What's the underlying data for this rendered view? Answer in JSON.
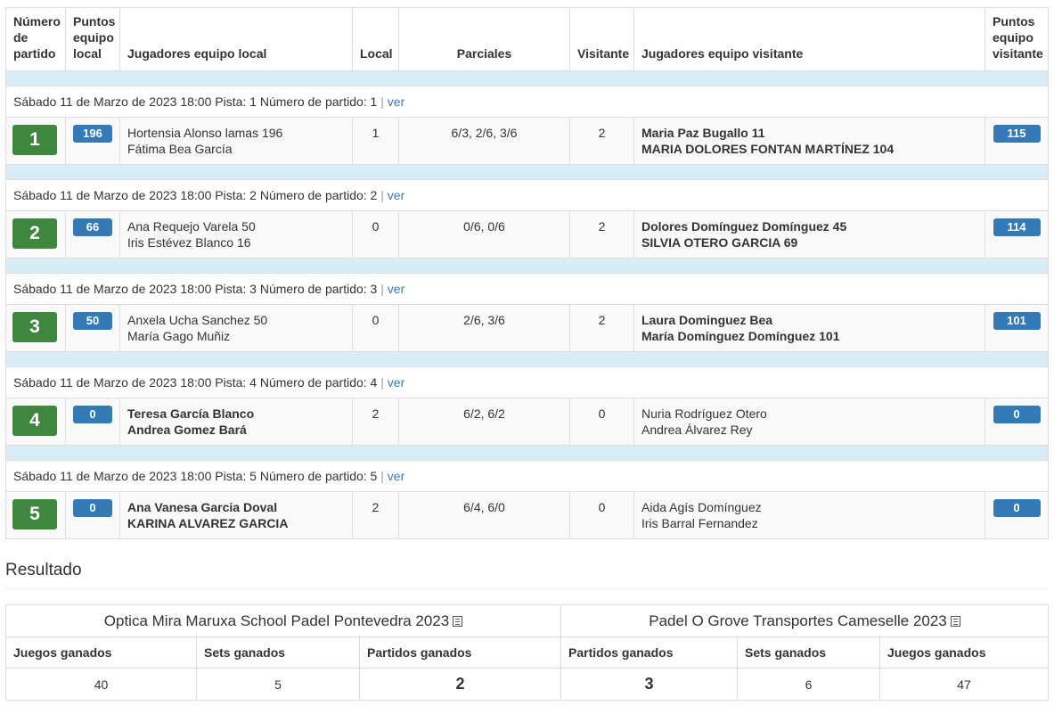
{
  "headers": {
    "match_number": "Número de partido",
    "home_points": "Puntos equipo local",
    "home_players": "Jugadores equipo local",
    "home": "Local",
    "partials": "Parciales",
    "away": "Visitante",
    "away_players": "Jugadores equipo visitante",
    "away_points": "Puntos equipo visitante"
  },
  "matches": [
    {
      "info": "Sábado 11 de Marzo de 2023 18:00 Pista: 1 Número de partido: 1",
      "link": "ver",
      "number": "1",
      "home_points": "196",
      "home_players": [
        "Hortensia Alonso lamas 196",
        "Fátima Bea García"
      ],
      "home_sets": "1",
      "partials": "6/3, 2/6, 3/6",
      "away_sets": "2",
      "away_players": [
        "Maria Paz Bugallo 11",
        "MARIA DOLORES FONTAN MARTÍNEZ 104"
      ],
      "away_points": "115"
    },
    {
      "info": "Sábado 11 de Marzo de 2023 18:00 Pista: 2 Número de partido: 2",
      "link": "ver",
      "number": "2",
      "home_points": "66",
      "home_players": [
        "Ana Requejo Varela 50",
        "Iris Estévez Blanco 16"
      ],
      "home_sets": "0",
      "partials": "0/6, 0/6",
      "away_sets": "2",
      "away_players": [
        "Dolores Domínguez Domínguez 45",
        "SILVIA OTERO GARCIA 69"
      ],
      "away_points": "114"
    },
    {
      "info": "Sábado 11 de Marzo de 2023 18:00 Pista: 3 Número de partido: 3",
      "link": "ver",
      "number": "3",
      "home_points": "50",
      "home_players": [
        "Anxela Ucha Sanchez 50",
        "María Gago Muñiz"
      ],
      "home_sets": "0",
      "partials": "2/6, 3/6",
      "away_sets": "2",
      "away_players": [
        "Laura Dominguez Bea",
        "María Domínguez Domínguez 101"
      ],
      "away_points": "101"
    },
    {
      "info": "Sábado 11 de Marzo de 2023 18:00 Pista: 4 Número de partido: 4",
      "link": "ver",
      "number": "4",
      "home_points": "0",
      "home_players": [
        "Teresa García Blanco",
        "Andrea Gomez Bará"
      ],
      "home_sets": "2",
      "partials": "6/2, 6/2",
      "away_sets": "0",
      "away_players": [
        "Nuria Rodríguez Otero",
        "Andrea Álvarez Rey"
      ],
      "away_points": "0"
    },
    {
      "info": "Sábado 11 de Marzo de 2023 18:00 Pista: 5 Número de partido: 5",
      "link": "ver",
      "number": "5",
      "home_points": "0",
      "home_players": [
        "Ana Vanesa Garcia Doval",
        "KARINA ALVAREZ GARCIA"
      ],
      "home_sets": "2",
      "partials": "6/4, 6/0",
      "away_sets": "0",
      "away_players": [
        "Aida Agís Domínguez",
        "Iris Barral Fernandez"
      ],
      "away_points": "0"
    }
  ],
  "result": {
    "title": "Resultado",
    "home_team": "Optica Mira Maruxa School Padel Pontevedra 2023",
    "away_team": "Padel O Grove Transportes Cameselle 2023",
    "cols": {
      "games": "Juegos ganados",
      "sets": "Sets ganados",
      "matches": "Partidos ganados"
    },
    "home": {
      "games": "40",
      "sets": "5",
      "matches": "2"
    },
    "away": {
      "matches": "3",
      "sets": "6",
      "games": "47"
    }
  },
  "colors": {
    "number_badge": "#3f873f",
    "points_badge": "#337ab7",
    "spacer_row": "#d9edf7",
    "link": "#337ab7"
  }
}
